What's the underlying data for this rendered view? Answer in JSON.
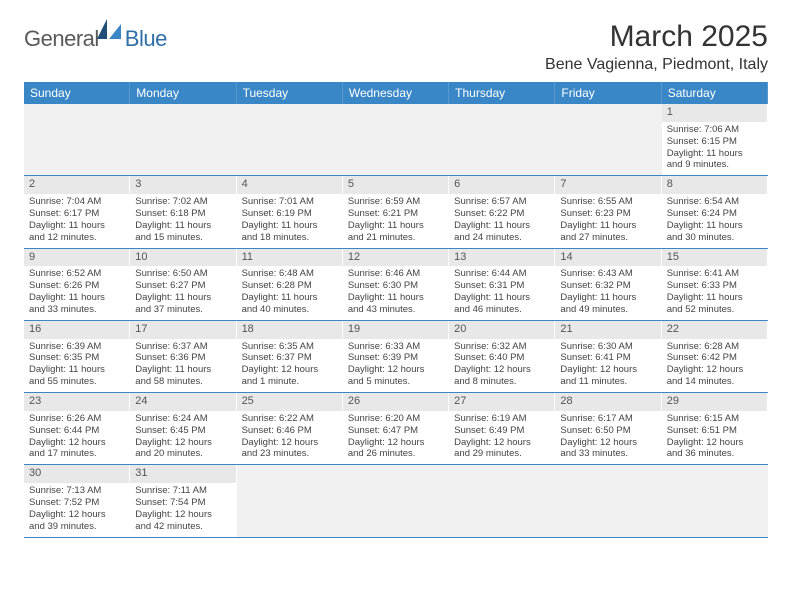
{
  "brand": {
    "name_a": "General",
    "name_b": "Blue"
  },
  "title": "March 2025",
  "location": "Bene Vagienna, Piedmont, Italy",
  "colors": {
    "header_bar": "#3a87c7",
    "daynum_bg": "#e8e8e8",
    "blank_bg": "#f1f1f1",
    "text": "#333333"
  },
  "days_of_week": [
    "Sunday",
    "Monday",
    "Tuesday",
    "Wednesday",
    "Thursday",
    "Friday",
    "Saturday"
  ],
  "weeks": [
    [
      {
        "blank": true
      },
      {
        "blank": true
      },
      {
        "blank": true
      },
      {
        "blank": true
      },
      {
        "blank": true
      },
      {
        "blank": true
      },
      {
        "n": "1",
        "sr": "Sunrise: 7:06 AM",
        "ss": "Sunset: 6:15 PM",
        "d1": "Daylight: 11 hours",
        "d2": "and 9 minutes."
      }
    ],
    [
      {
        "n": "2",
        "sr": "Sunrise: 7:04 AM",
        "ss": "Sunset: 6:17 PM",
        "d1": "Daylight: 11 hours",
        "d2": "and 12 minutes."
      },
      {
        "n": "3",
        "sr": "Sunrise: 7:02 AM",
        "ss": "Sunset: 6:18 PM",
        "d1": "Daylight: 11 hours",
        "d2": "and 15 minutes."
      },
      {
        "n": "4",
        "sr": "Sunrise: 7:01 AM",
        "ss": "Sunset: 6:19 PM",
        "d1": "Daylight: 11 hours",
        "d2": "and 18 minutes."
      },
      {
        "n": "5",
        "sr": "Sunrise: 6:59 AM",
        "ss": "Sunset: 6:21 PM",
        "d1": "Daylight: 11 hours",
        "d2": "and 21 minutes."
      },
      {
        "n": "6",
        "sr": "Sunrise: 6:57 AM",
        "ss": "Sunset: 6:22 PM",
        "d1": "Daylight: 11 hours",
        "d2": "and 24 minutes."
      },
      {
        "n": "7",
        "sr": "Sunrise: 6:55 AM",
        "ss": "Sunset: 6:23 PM",
        "d1": "Daylight: 11 hours",
        "d2": "and 27 minutes."
      },
      {
        "n": "8",
        "sr": "Sunrise: 6:54 AM",
        "ss": "Sunset: 6:24 PM",
        "d1": "Daylight: 11 hours",
        "d2": "and 30 minutes."
      }
    ],
    [
      {
        "n": "9",
        "sr": "Sunrise: 6:52 AM",
        "ss": "Sunset: 6:26 PM",
        "d1": "Daylight: 11 hours",
        "d2": "and 33 minutes."
      },
      {
        "n": "10",
        "sr": "Sunrise: 6:50 AM",
        "ss": "Sunset: 6:27 PM",
        "d1": "Daylight: 11 hours",
        "d2": "and 37 minutes."
      },
      {
        "n": "11",
        "sr": "Sunrise: 6:48 AM",
        "ss": "Sunset: 6:28 PM",
        "d1": "Daylight: 11 hours",
        "d2": "and 40 minutes."
      },
      {
        "n": "12",
        "sr": "Sunrise: 6:46 AM",
        "ss": "Sunset: 6:30 PM",
        "d1": "Daylight: 11 hours",
        "d2": "and 43 minutes."
      },
      {
        "n": "13",
        "sr": "Sunrise: 6:44 AM",
        "ss": "Sunset: 6:31 PM",
        "d1": "Daylight: 11 hours",
        "d2": "and 46 minutes."
      },
      {
        "n": "14",
        "sr": "Sunrise: 6:43 AM",
        "ss": "Sunset: 6:32 PM",
        "d1": "Daylight: 11 hours",
        "d2": "and 49 minutes."
      },
      {
        "n": "15",
        "sr": "Sunrise: 6:41 AM",
        "ss": "Sunset: 6:33 PM",
        "d1": "Daylight: 11 hours",
        "d2": "and 52 minutes."
      }
    ],
    [
      {
        "n": "16",
        "sr": "Sunrise: 6:39 AM",
        "ss": "Sunset: 6:35 PM",
        "d1": "Daylight: 11 hours",
        "d2": "and 55 minutes."
      },
      {
        "n": "17",
        "sr": "Sunrise: 6:37 AM",
        "ss": "Sunset: 6:36 PM",
        "d1": "Daylight: 11 hours",
        "d2": "and 58 minutes."
      },
      {
        "n": "18",
        "sr": "Sunrise: 6:35 AM",
        "ss": "Sunset: 6:37 PM",
        "d1": "Daylight: 12 hours",
        "d2": "and 1 minute."
      },
      {
        "n": "19",
        "sr": "Sunrise: 6:33 AM",
        "ss": "Sunset: 6:39 PM",
        "d1": "Daylight: 12 hours",
        "d2": "and 5 minutes."
      },
      {
        "n": "20",
        "sr": "Sunrise: 6:32 AM",
        "ss": "Sunset: 6:40 PM",
        "d1": "Daylight: 12 hours",
        "d2": "and 8 minutes."
      },
      {
        "n": "21",
        "sr": "Sunrise: 6:30 AM",
        "ss": "Sunset: 6:41 PM",
        "d1": "Daylight: 12 hours",
        "d2": "and 11 minutes."
      },
      {
        "n": "22",
        "sr": "Sunrise: 6:28 AM",
        "ss": "Sunset: 6:42 PM",
        "d1": "Daylight: 12 hours",
        "d2": "and 14 minutes."
      }
    ],
    [
      {
        "n": "23",
        "sr": "Sunrise: 6:26 AM",
        "ss": "Sunset: 6:44 PM",
        "d1": "Daylight: 12 hours",
        "d2": "and 17 minutes."
      },
      {
        "n": "24",
        "sr": "Sunrise: 6:24 AM",
        "ss": "Sunset: 6:45 PM",
        "d1": "Daylight: 12 hours",
        "d2": "and 20 minutes."
      },
      {
        "n": "25",
        "sr": "Sunrise: 6:22 AM",
        "ss": "Sunset: 6:46 PM",
        "d1": "Daylight: 12 hours",
        "d2": "and 23 minutes."
      },
      {
        "n": "26",
        "sr": "Sunrise: 6:20 AM",
        "ss": "Sunset: 6:47 PM",
        "d1": "Daylight: 12 hours",
        "d2": "and 26 minutes."
      },
      {
        "n": "27",
        "sr": "Sunrise: 6:19 AM",
        "ss": "Sunset: 6:49 PM",
        "d1": "Daylight: 12 hours",
        "d2": "and 29 minutes."
      },
      {
        "n": "28",
        "sr": "Sunrise: 6:17 AM",
        "ss": "Sunset: 6:50 PM",
        "d1": "Daylight: 12 hours",
        "d2": "and 33 minutes."
      },
      {
        "n": "29",
        "sr": "Sunrise: 6:15 AM",
        "ss": "Sunset: 6:51 PM",
        "d1": "Daylight: 12 hours",
        "d2": "and 36 minutes."
      }
    ],
    [
      {
        "n": "30",
        "sr": "Sunrise: 7:13 AM",
        "ss": "Sunset: 7:52 PM",
        "d1": "Daylight: 12 hours",
        "d2": "and 39 minutes."
      },
      {
        "n": "31",
        "sr": "Sunrise: 7:11 AM",
        "ss": "Sunset: 7:54 PM",
        "d1": "Daylight: 12 hours",
        "d2": "and 42 minutes."
      },
      {
        "blank": true
      },
      {
        "blank": true
      },
      {
        "blank": true
      },
      {
        "blank": true
      },
      {
        "blank": true
      }
    ]
  ]
}
